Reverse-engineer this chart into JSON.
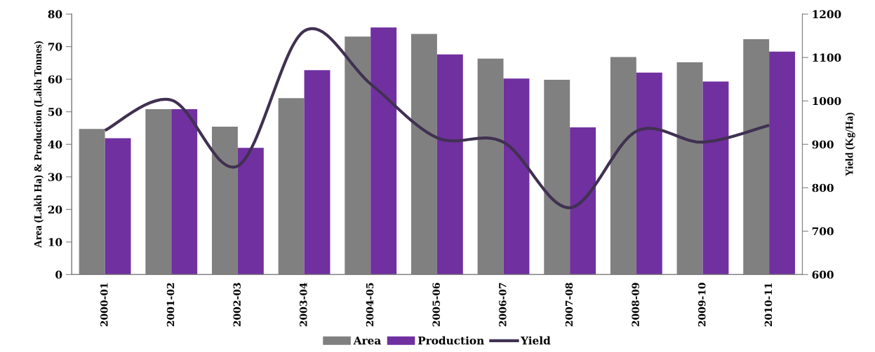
{
  "chart_data": {
    "type": "bar",
    "categories": [
      "2000-01",
      "2001-02",
      "2002-03",
      "2003-04",
      "2004-05",
      "2005-06",
      "2006-07",
      "2007-08",
      "2008-09",
      "2009-10",
      "2010-11"
    ],
    "series": [
      {
        "name": "Area",
        "color": "#808080",
        "values": [
          44.7,
          50.8,
          45.4,
          54.2,
          73.1,
          73.9,
          66.3,
          59.8,
          66.8,
          65.2,
          72.3
        ]
      },
      {
        "name": "Production",
        "color": "#7030a0",
        "values": [
          41.9,
          50.8,
          38.9,
          62.8,
          75.9,
          67.6,
          60.2,
          45.2,
          62.0,
          59.3,
          68.5
        ]
      },
      {
        "name": "Yield",
        "type": "line",
        "axis": "y2",
        "color": "#403151",
        "values": [
          932,
          1002,
          850,
          1161,
          1039,
          915,
          905,
          754,
          930,
          905,
          944
        ]
      }
    ],
    "ylabel": "Area (Lakh Ha) & Production (Lakh Tonnes)",
    "y2label": "Yield (Kg/Ha)",
    "ylim": [
      0,
      80
    ],
    "yticks": [
      0,
      10,
      20,
      30,
      40,
      50,
      60,
      70,
      80
    ],
    "y2lim": [
      600,
      1200
    ],
    "y2ticks": [
      600,
      700,
      800,
      900,
      1000,
      1100,
      1200
    ],
    "legend": "bottom",
    "grid": false,
    "marker": "none",
    "line_style": "solid"
  }
}
